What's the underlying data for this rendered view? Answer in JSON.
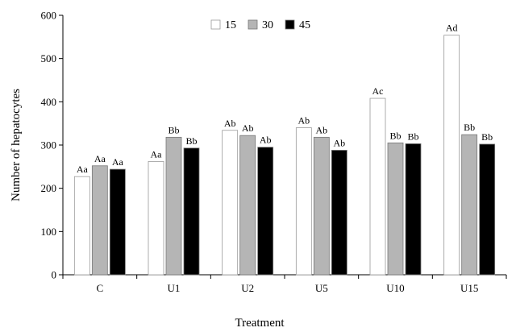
{
  "chart_data": {
    "type": "bar",
    "title": "",
    "xlabel": "Treatment",
    "ylabel": "Number of hepatocytes",
    "categories": [
      "C",
      "U1",
      "U2",
      "U5",
      "U10",
      "U15"
    ],
    "ylim": [
      0,
      600
    ],
    "yticks": [
      0,
      100,
      200,
      300,
      400,
      500,
      600
    ],
    "grid": false,
    "legend_position": "top-center",
    "series": [
      {
        "name": "15",
        "color": "#ffffff",
        "values": [
          227,
          262,
          334,
          340,
          408,
          554
        ],
        "labels": [
          "Aa",
          "Aa",
          "Ab",
          "Ab",
          "Ac",
          "Ad"
        ]
      },
      {
        "name": "30",
        "color": "#b5b5b5",
        "values": [
          252,
          318,
          322,
          318,
          305,
          324
        ],
        "labels": [
          "Aa",
          "Bb",
          "Ab",
          "Ab",
          "Bb",
          "Bb"
        ]
      },
      {
        "name": "45",
        "color": "#000000",
        "values": [
          244,
          293,
          295,
          288,
          303,
          302
        ],
        "labels": [
          "Aa",
          "Bb",
          "Ab",
          "Ab",
          "Bb",
          "Bb"
        ]
      }
    ]
  }
}
